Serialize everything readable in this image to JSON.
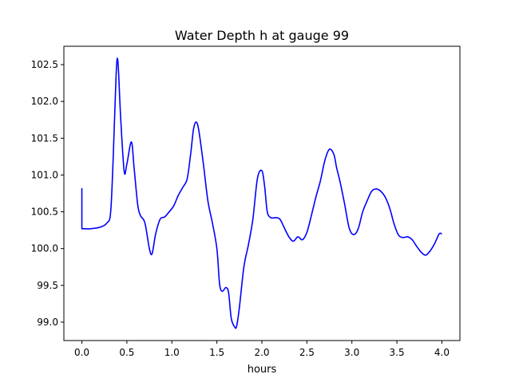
{
  "chart_data": {
    "type": "line",
    "title": "Water Depth h at gauge 99",
    "xlabel": "hours",
    "ylabel": "",
    "xlim": [
      -0.2,
      4.2
    ],
    "ylim": [
      98.75,
      102.75
    ],
    "xticks": [
      "0.0",
      "0.5",
      "1.0",
      "1.5",
      "2.0",
      "2.5",
      "3.0",
      "3.5",
      "4.0"
    ],
    "yticks": [
      "99.0",
      "99.5",
      "100.0",
      "100.5",
      "101.0",
      "101.5",
      "102.0",
      "102.5"
    ],
    "grid": false,
    "series": [
      {
        "color": "#0000ff",
        "x": [
          0.0,
          0.0,
          0.1,
          0.2,
          0.28,
          0.32,
          0.35,
          0.38,
          0.4,
          0.43,
          0.47,
          0.5,
          0.55,
          0.58,
          0.62,
          0.65,
          0.7,
          0.75,
          0.78,
          0.82,
          0.87,
          0.92,
          0.97,
          1.02,
          1.07,
          1.12,
          1.17,
          1.21,
          1.24,
          1.27,
          1.3,
          1.35,
          1.4,
          1.45,
          1.5,
          1.53,
          1.56,
          1.6,
          1.63,
          1.66,
          1.7,
          1.72,
          1.75,
          1.8,
          1.85,
          1.9,
          1.95,
          2.0,
          2.03,
          2.06,
          2.1,
          2.15,
          2.2,
          2.25,
          2.3,
          2.35,
          2.4,
          2.45,
          2.5,
          2.55,
          2.6,
          2.65,
          2.7,
          2.75,
          2.8,
          2.83,
          2.87,
          2.92,
          2.97,
          3.02,
          3.07,
          3.12,
          3.17,
          3.22,
          3.27,
          3.32,
          3.37,
          3.42,
          3.47,
          3.52,
          3.57,
          3.62,
          3.67,
          3.72,
          3.77,
          3.82,
          3.87,
          3.92,
          3.97,
          4.0
        ],
        "y": [
          100.82,
          100.27,
          100.27,
          100.29,
          100.35,
          100.5,
          101.3,
          102.35,
          102.55,
          101.8,
          101.05,
          101.15,
          101.45,
          101.1,
          100.6,
          100.45,
          100.35,
          100.0,
          99.93,
          100.2,
          100.4,
          100.43,
          100.5,
          100.58,
          100.72,
          100.83,
          100.95,
          101.3,
          101.62,
          101.72,
          101.6,
          101.15,
          100.65,
          100.35,
          100.0,
          99.52,
          99.42,
          99.47,
          99.4,
          99.05,
          98.93,
          98.95,
          99.2,
          99.75,
          100.05,
          100.4,
          100.95,
          101.06,
          100.85,
          100.5,
          100.42,
          100.42,
          100.4,
          100.28,
          100.16,
          100.1,
          100.16,
          100.12,
          100.22,
          100.45,
          100.7,
          100.92,
          101.2,
          101.35,
          101.28,
          101.1,
          100.9,
          100.6,
          100.28,
          100.19,
          100.27,
          100.5,
          100.65,
          100.78,
          100.81,
          100.78,
          100.7,
          100.55,
          100.33,
          100.18,
          100.15,
          100.16,
          100.12,
          100.03,
          99.95,
          99.91,
          99.97,
          100.07,
          100.2,
          100.2
        ]
      }
    ]
  }
}
